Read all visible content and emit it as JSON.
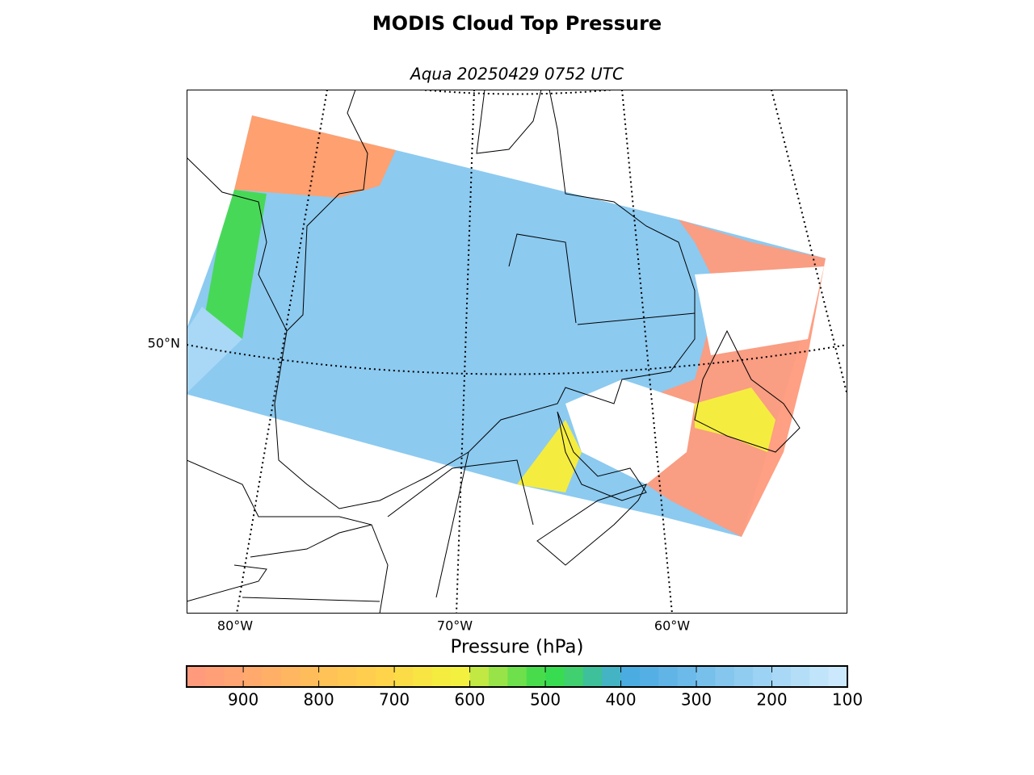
{
  "title": "MODIS Cloud Top Pressure",
  "subtitle": "Aqua 20250429 0752 UTC",
  "map": {
    "lon_labels": [
      "80°W",
      "70°W",
      "60°W"
    ],
    "lat_labels": [
      "50°N"
    ]
  },
  "colorbar": {
    "label": "Pressure (hPa)",
    "clim": [
      975,
      100
    ],
    "ticks": [
      900,
      800,
      700,
      600,
      500,
      400,
      300,
      200,
      100
    ],
    "colors": [
      "#ff9a7c",
      "#ff9f78",
      "#ffa472",
      "#ffaa6c",
      "#ffb066",
      "#ffb660",
      "#ffbc5a",
      "#ffc256",
      "#ffc852",
      "#ffce4e",
      "#ffd44a",
      "#fbdc46",
      "#f8e442",
      "#f5ec40",
      "#f4f040",
      "#c2e844",
      "#98e448",
      "#6ee04c",
      "#48dc4c",
      "#38dc50",
      "#40d070",
      "#3ec09a",
      "#44b4c4",
      "#4aace0",
      "#54b0e4",
      "#60b4e6",
      "#6cbaea",
      "#78c0ec",
      "#84c6ee",
      "#90ccf0",
      "#9cd2f4",
      "#a8d8f6",
      "#b4def8",
      "#c0e4fa",
      "#cce8fc"
    ]
  }
}
